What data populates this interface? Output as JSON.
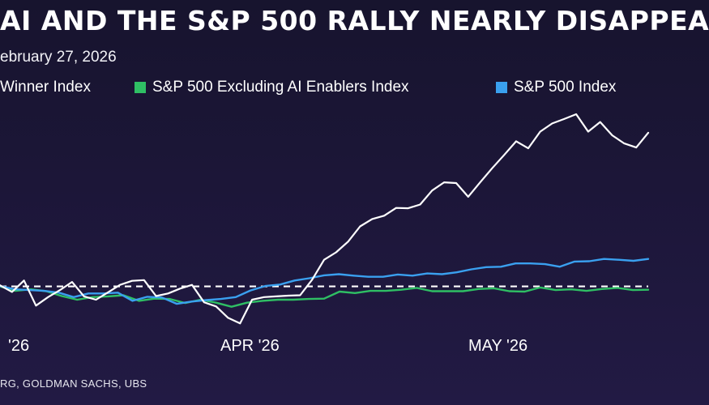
{
  "header": {
    "title": "AI AND THE S&P 500 RALLY NEARLY DISAPPEA",
    "subtitle": "ebruary 27, 2026"
  },
  "footer": {
    "source": "RG, GOLDMAN SACHS, UBS"
  },
  "colors": {
    "background": "#1c1638",
    "baseline": "#ffffff"
  },
  "chart_data": {
    "type": "line",
    "title": "AI AND THE S&P 500 RALLY NEARLY DISAPPEA",
    "subtitle": "ebruary 27, 2026",
    "x_tick_labels": [
      "'26",
      "APR '26",
      "MAY '26"
    ],
    "baseline_value": 100,
    "ylim": [
      80,
      150
    ],
    "grid": false,
    "legend_position": "top",
    "series": [
      {
        "name": "Winner Index",
        "color": "#ffffff",
        "values": [
          100.3,
          98.5,
          101.6,
          94.8,
          97.1,
          99.0,
          101.2,
          97.3,
          96.4,
          98.4,
          100.4,
          101.5,
          101.7,
          97.4,
          98.1,
          99.4,
          100.4,
          95.7,
          94.6,
          91.5,
          90.0,
          96.4,
          97.1,
          97.3,
          97.5,
          97.6,
          101.8,
          107.2,
          109.2,
          112.1,
          116.2,
          118.2,
          119.1,
          121.2,
          121.1,
          122.1,
          125.9,
          128.1,
          127.9,
          124.2,
          128.1,
          131.9,
          135.5,
          139.2,
          137.3,
          141.8,
          144.0,
          145.2,
          146.5,
          141.8,
          144.4,
          140.8,
          138.6,
          137.5,
          141.5
        ]
      },
      {
        "name": "S&P 500 Excluding AI Enablers Index",
        "color": "#2fbf64",
        "values": [
          100.0,
          98.8,
          99.2,
          98.7,
          97.4,
          96.4,
          97.1,
          97.3,
          97.6,
          96.1,
          96.7,
          96.6,
          95.5,
          96.4,
          95.6,
          94.5,
          95.6,
          96.1,
          96.4,
          96.4,
          96.6,
          96.7,
          98.6,
          98.2,
          98.8,
          98.8,
          99.1,
          99.6,
          98.7,
          98.7,
          98.7,
          99.3,
          99.5,
          98.7,
          98.6,
          99.7,
          99.0,
          99.2,
          98.8,
          99.3,
          99.6,
          99.0,
          99.1
        ]
      },
      {
        "name": "S&P 500 Index",
        "color": "#3aa0ef",
        "values": [
          100.1,
          99.2,
          99.0,
          98.8,
          98.3,
          97.1,
          98.1,
          98.1,
          98.3,
          96.1,
          97.2,
          97.0,
          95.3,
          95.9,
          96.3,
          96.6,
          97.1,
          98.9,
          100.1,
          100.5,
          101.6,
          102.2,
          103.0,
          103.3,
          102.9,
          102.6,
          102.6,
          103.2,
          102.9,
          103.5,
          103.3,
          103.8,
          104.6,
          105.2,
          105.3,
          106.2,
          106.2,
          106.0,
          105.3,
          106.7,
          106.8,
          107.4,
          107.2,
          106.9,
          107.4
        ]
      }
    ]
  }
}
